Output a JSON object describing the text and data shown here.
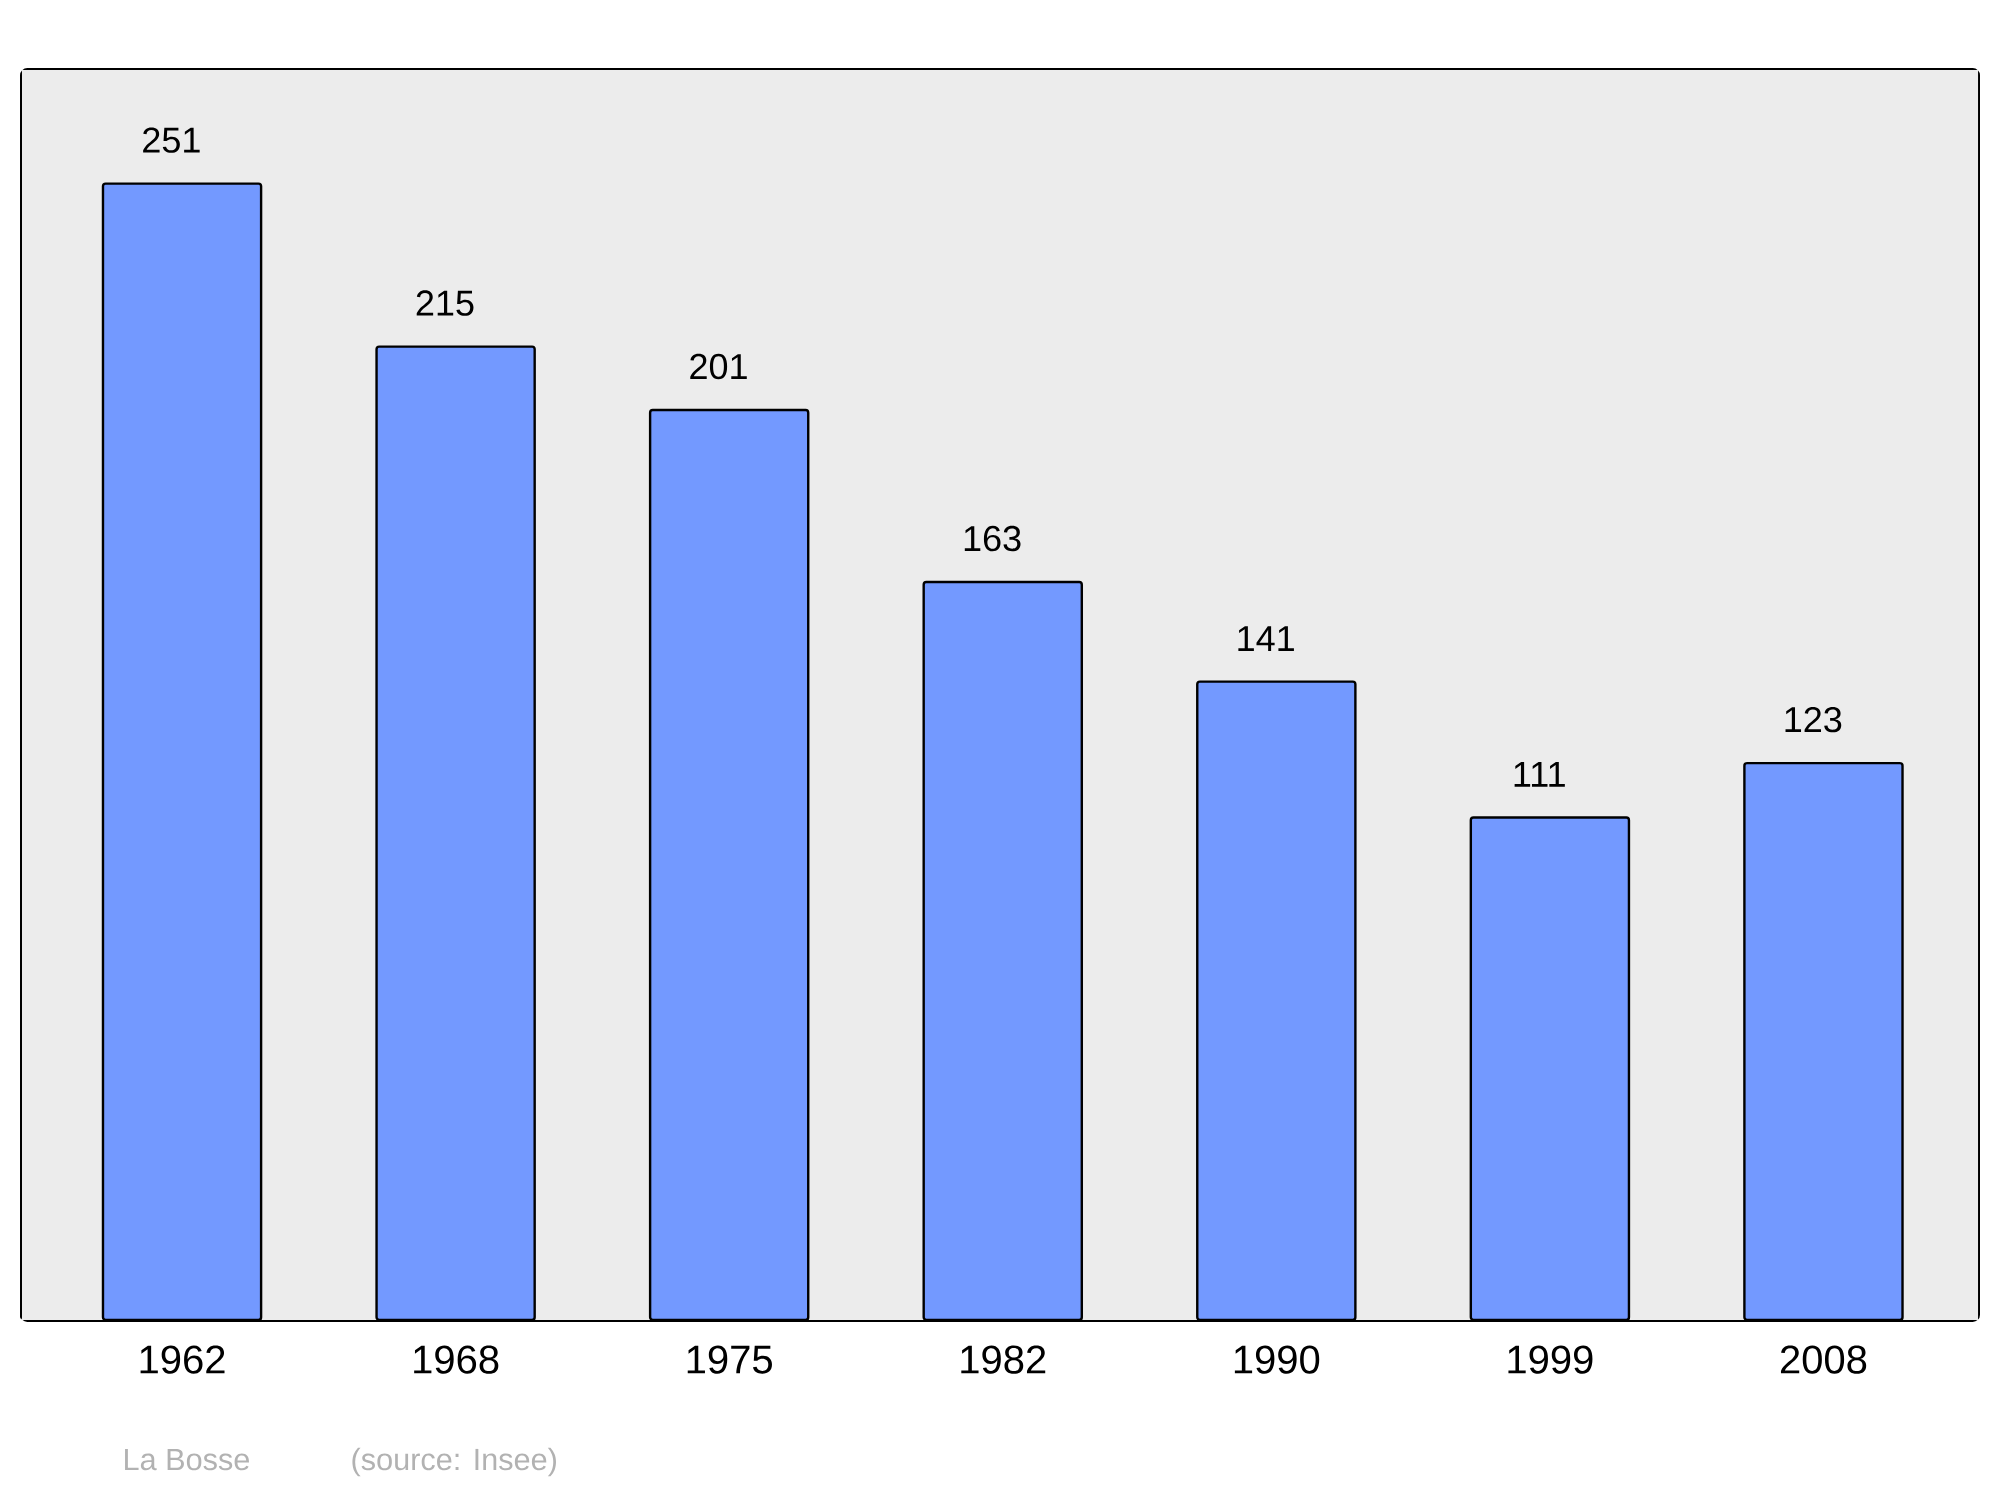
{
  "chart_data": {
    "type": "bar",
    "categories": [
      "1962",
      "1968",
      "1975",
      "1982",
      "1990",
      "1999",
      "2008"
    ],
    "values": [
      251,
      215,
      201,
      163,
      141,
      111,
      123
    ],
    "color": "#7399ff",
    "data_labels": true,
    "annotations": [
      "La Bosse",
      "(source: Insee)"
    ]
  }
}
